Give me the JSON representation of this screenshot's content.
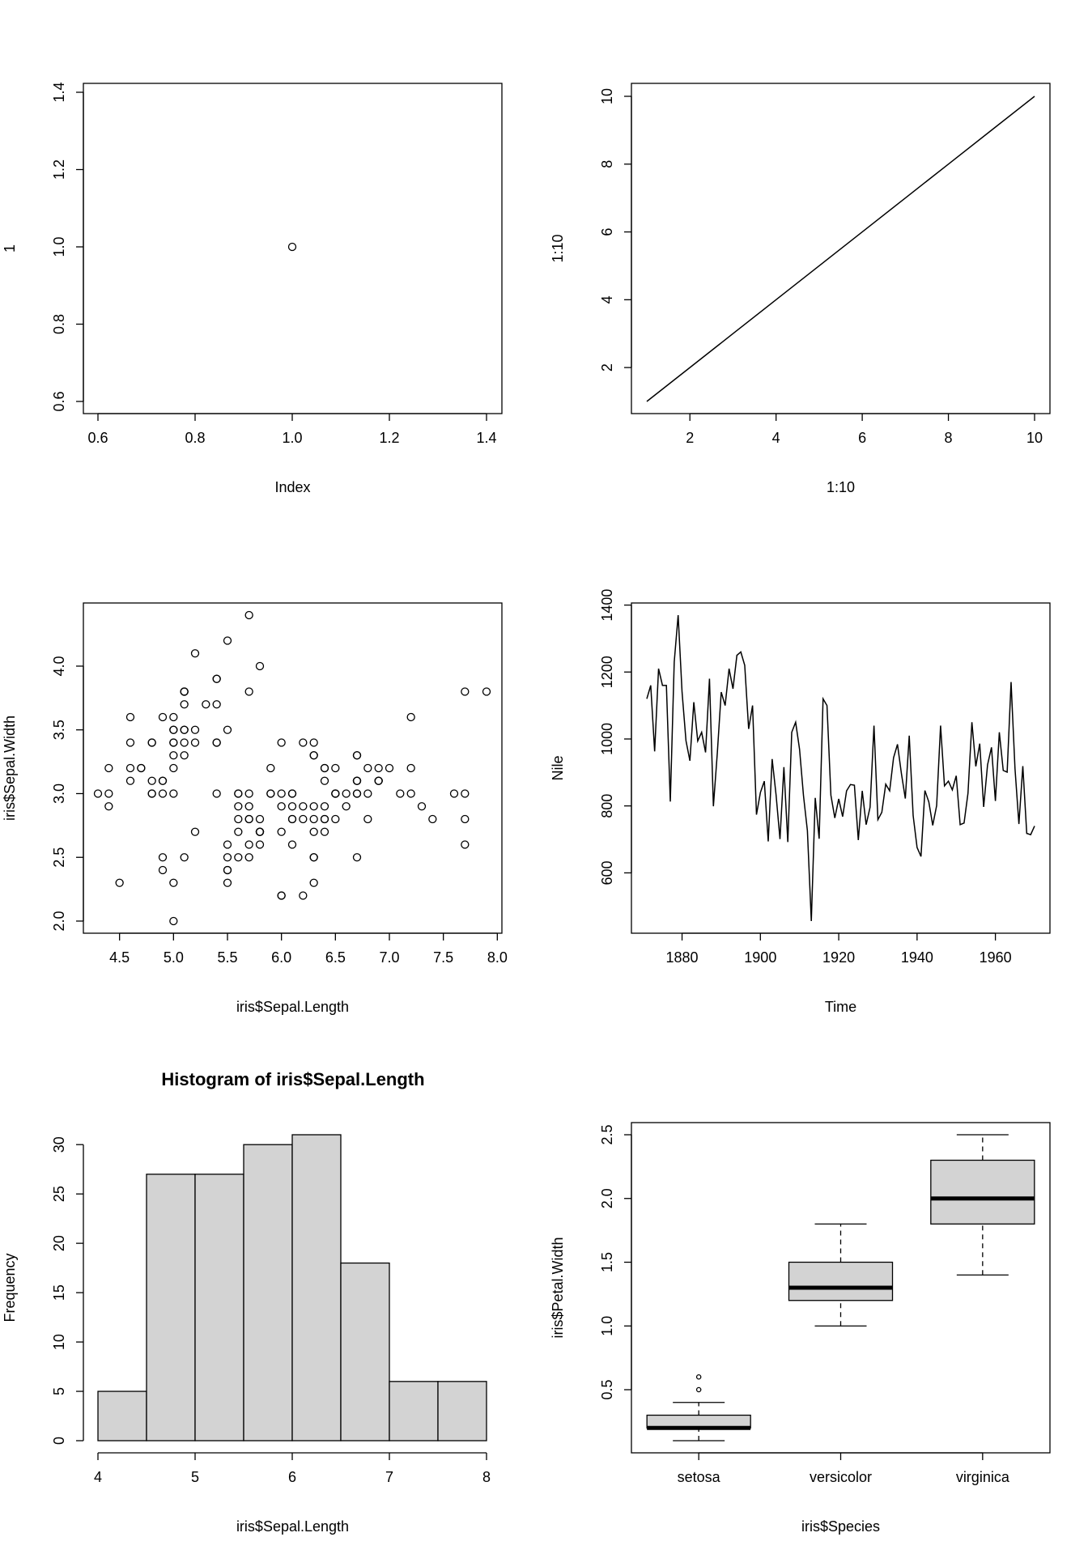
{
  "chart_data": [
    {
      "type": "scatter",
      "title": "",
      "xlabel": "Index",
      "ylabel": "1",
      "xlim": [
        0.6,
        1.4
      ],
      "ylim": [
        0.6,
        1.4
      ],
      "xticks": [
        "0.6",
        "0.8",
        "1.0",
        "1.2",
        "1.4"
      ],
      "yticks": [
        "0.6",
        "0.8",
        "1.0",
        "1.2",
        "1.4"
      ],
      "x": [
        1.0
      ],
      "y": [
        1.0
      ]
    },
    {
      "type": "line",
      "title": "",
      "xlabel": "1:10",
      "ylabel": "1:10",
      "xlim": [
        1,
        10
      ],
      "ylim": [
        1,
        10
      ],
      "xticks": [
        "2",
        "4",
        "6",
        "8",
        "10"
      ],
      "yticks": [
        "2",
        "4",
        "6",
        "8",
        "10"
      ],
      "x": [
        1,
        2,
        3,
        4,
        5,
        6,
        7,
        8,
        9,
        10
      ],
      "y": [
        1,
        2,
        3,
        4,
        5,
        6,
        7,
        8,
        9,
        10
      ]
    },
    {
      "type": "scatter",
      "title": "",
      "xlabel": "iris$Sepal.Length",
      "ylabel": "iris$Sepal.Width",
      "xlim": [
        4.3,
        7.9
      ],
      "ylim": [
        2.0,
        4.4
      ],
      "xticks": [
        "4.5",
        "5.0",
        "5.5",
        "6.0",
        "6.5",
        "7.0",
        "7.5",
        "8.0"
      ],
      "yticks": [
        "2.0",
        "2.5",
        "3.0",
        "3.5",
        "4.0"
      ],
      "x": [
        5.1,
        4.9,
        4.7,
        4.6,
        5.0,
        5.4,
        4.6,
        5.0,
        4.4,
        4.9,
        5.4,
        4.8,
        4.8,
        4.3,
        5.8,
        5.7,
        5.4,
        5.1,
        5.7,
        5.1,
        5.4,
        5.1,
        4.6,
        5.1,
        4.8,
        5.0,
        5.0,
        5.2,
        5.2,
        4.7,
        4.8,
        5.4,
        5.2,
        5.5,
        4.9,
        5.0,
        5.5,
        4.9,
        4.4,
        5.1,
        5.0,
        4.5,
        4.4,
        5.0,
        5.1,
        4.8,
        5.1,
        4.6,
        5.3,
        5.0,
        7.0,
        6.4,
        6.9,
        5.5,
        6.5,
        5.7,
        6.3,
        4.9,
        6.6,
        5.2,
        5.0,
        5.9,
        6.0,
        6.1,
        5.6,
        6.7,
        5.6,
        5.8,
        6.2,
        5.6,
        5.9,
        6.1,
        6.3,
        6.1,
        6.4,
        6.6,
        6.8,
        6.7,
        6.0,
        5.7,
        5.5,
        5.5,
        5.8,
        6.0,
        5.4,
        6.0,
        6.7,
        6.3,
        5.6,
        5.5,
        5.5,
        6.1,
        5.8,
        5.0,
        5.6,
        5.7,
        5.7,
        6.2,
        5.1,
        5.7,
        6.3,
        5.8,
        7.1,
        6.3,
        6.5,
        7.6,
        4.9,
        7.3,
        6.7,
        7.2,
        6.5,
        6.4,
        6.8,
        5.7,
        5.8,
        6.4,
        6.5,
        7.7,
        7.7,
        6.0,
        6.9,
        5.6,
        7.7,
        6.3,
        6.7,
        7.2,
        6.2,
        6.1,
        6.4,
        7.2,
        7.4,
        7.9,
        6.4,
        6.3,
        6.1,
        7.7,
        6.3,
        6.4,
        6.0,
        6.9,
        6.7,
        6.9,
        5.8,
        6.8,
        6.7,
        6.7,
        6.3,
        6.5,
        6.2,
        5.9
      ],
      "y": [
        3.5,
        3.0,
        3.2,
        3.1,
        3.6,
        3.9,
        3.4,
        3.4,
        2.9,
        3.1,
        3.7,
        3.4,
        3.0,
        3.0,
        4.0,
        4.4,
        3.9,
        3.5,
        3.8,
        3.8,
        3.4,
        3.7,
        3.6,
        3.3,
        3.4,
        3.0,
        3.4,
        3.5,
        3.4,
        3.2,
        3.1,
        3.4,
        4.1,
        4.2,
        3.1,
        3.2,
        3.5,
        3.6,
        3.0,
        3.4,
        3.5,
        2.3,
        3.2,
        3.5,
        3.8,
        3.0,
        3.8,
        3.2,
        3.7,
        3.3,
        3.2,
        3.2,
        3.1,
        2.3,
        2.8,
        2.8,
        3.3,
        2.4,
        2.9,
        2.7,
        2.0,
        3.0,
        2.2,
        2.9,
        2.9,
        3.1,
        3.0,
        2.7,
        2.2,
        2.5,
        3.2,
        2.8,
        2.5,
        2.8,
        2.9,
        3.0,
        2.8,
        3.0,
        2.9,
        2.6,
        2.4,
        2.4,
        2.7,
        2.7,
        3.0,
        3.4,
        3.1,
        2.3,
        3.0,
        2.5,
        2.6,
        3.0,
        2.6,
        2.3,
        2.7,
        3.0,
        2.9,
        2.9,
        2.5,
        2.8,
        3.3,
        2.7,
        3.0,
        2.9,
        3.0,
        3.0,
        2.5,
        2.9,
        2.5,
        3.6,
        3.2,
        2.7,
        3.0,
        2.5,
        2.8,
        3.2,
        3.0,
        3.8,
        2.6,
        2.2,
        3.2,
        2.8,
        2.8,
        2.7,
        3.3,
        3.2,
        2.8,
        3.0,
        2.8,
        3.0,
        2.8,
        3.8,
        2.8,
        2.8,
        2.6,
        3.0,
        3.4,
        3.1,
        3.0,
        3.1,
        3.1,
        3.1,
        2.7,
        3.2,
        3.3,
        3.0,
        2.5,
        3.0,
        3.4,
        3.0
      ]
    },
    {
      "type": "line",
      "title": "",
      "xlabel": "Time",
      "ylabel": "Nile",
      "xlim": [
        1871,
        1970
      ],
      "ylim": [
        456,
        1370
      ],
      "xticks": [
        "1880",
        "1900",
        "1920",
        "1940",
        "1960"
      ],
      "yticks": [
        "600",
        "800",
        "1000",
        "1200",
        "1400"
      ],
      "x_start": 1871,
      "y": [
        1120,
        1160,
        963,
        1210,
        1160,
        1160,
        813,
        1230,
        1370,
        1140,
        995,
        935,
        1110,
        994,
        1020,
        960,
        1180,
        799,
        958,
        1140,
        1100,
        1210,
        1150,
        1250,
        1260,
        1220,
        1030,
        1100,
        774,
        840,
        874,
        694,
        940,
        833,
        701,
        916,
        692,
        1020,
        1050,
        969,
        831,
        726,
        456,
        824,
        702,
        1120,
        1100,
        832,
        764,
        821,
        768,
        845,
        864,
        862,
        698,
        845,
        744,
        796,
        1040,
        759,
        781,
        865,
        845,
        944,
        984,
        897,
        822,
        1010,
        771,
        676,
        649,
        846,
        812,
        742,
        801,
        1040,
        860,
        874,
        848,
        890,
        744,
        749,
        838,
        1050,
        918,
        986,
        797,
        923,
        975,
        815,
        1020,
        906,
        901,
        1170,
        912,
        746,
        919,
        718,
        714,
        740
      ]
    },
    {
      "type": "bar",
      "title": "Histogram of iris$Sepal.Length",
      "xlabel": "iris$Sepal.Length",
      "ylabel": "Frequency",
      "xlim": [
        4,
        8
      ],
      "ylim": [
        0,
        31
      ],
      "xticks": [
        "4",
        "5",
        "6",
        "7",
        "8"
      ],
      "yticks": [
        "0",
        "5",
        "10",
        "15",
        "20",
        "25",
        "30"
      ],
      "breaks": [
        4.0,
        4.5,
        5.0,
        5.5,
        6.0,
        6.5,
        7.0,
        7.5,
        8.0
      ],
      "values": [
        5,
        27,
        27,
        30,
        31,
        18,
        6,
        6
      ],
      "bar_color": "#d3d3d3"
    },
    {
      "type": "box",
      "title": "",
      "xlabel": "iris$Species",
      "ylabel": "iris$Petal.Width",
      "ylim": [
        0.1,
        2.5
      ],
      "yticks": [
        "0.5",
        "1.0",
        "1.5",
        "2.0",
        "2.5"
      ],
      "categories": [
        "setosa",
        "versicolor",
        "virginica"
      ],
      "boxes": [
        {
          "whisker_low": 0.1,
          "q1": 0.2,
          "median": 0.2,
          "q3": 0.3,
          "whisker_high": 0.4,
          "outliers": [
            0.5,
            0.6
          ]
        },
        {
          "whisker_low": 1.0,
          "q1": 1.2,
          "median": 1.3,
          "q3": 1.5,
          "whisker_high": 1.8,
          "outliers": []
        },
        {
          "whisker_low": 1.4,
          "q1": 1.8,
          "median": 2.0,
          "q3": 2.3,
          "whisker_high": 2.5,
          "outliers": []
        }
      ],
      "box_color": "#d3d3d3"
    }
  ]
}
